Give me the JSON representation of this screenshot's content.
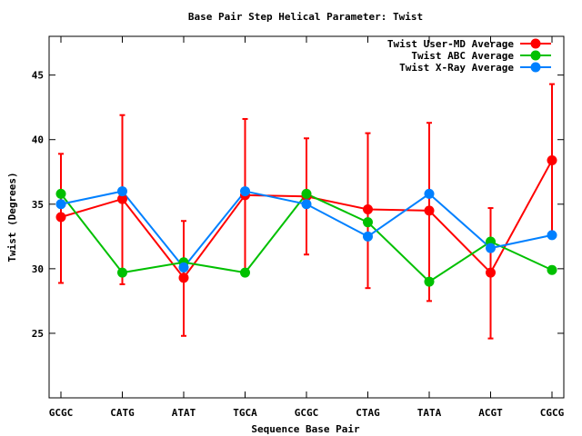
{
  "chart_data": {
    "type": "line",
    "title": "Base Pair Step Helical Parameter: Twist",
    "xlabel": "Sequence Base Pair",
    "ylabel": "Twist (Degrees)",
    "categories": [
      "GCGC",
      "CATG",
      "ATAT",
      "TGCA",
      "GCGC",
      "CTAG",
      "TATA",
      "ACGT",
      "CGCG"
    ],
    "ylim": [
      20,
      48
    ],
    "yticks": [
      25,
      30,
      35,
      40,
      45
    ],
    "grid": false,
    "legend_position": "top-right",
    "series": [
      {
        "name": "Twist User-MD Average",
        "color": "#ff0000",
        "values": [
          34.0,
          35.4,
          29.3,
          35.7,
          35.6,
          34.6,
          34.5,
          29.7,
          38.4
        ],
        "error_low": [
          28.9,
          28.8,
          24.8,
          29.5,
          31.1,
          28.5,
          27.5,
          24.6,
          32.6
        ],
        "error_high": [
          38.9,
          41.9,
          33.7,
          41.6,
          40.1,
          40.5,
          41.3,
          34.7,
          44.3
        ]
      },
      {
        "name": "Twist ABC Average",
        "color": "#00c000",
        "values": [
          35.8,
          29.7,
          30.5,
          29.7,
          35.8,
          33.6,
          29.0,
          32.1,
          29.9
        ]
      },
      {
        "name": "Twist X-Ray Average",
        "color": "#0080ff",
        "values": [
          35.0,
          36.0,
          30.1,
          36.0,
          35.0,
          32.5,
          35.8,
          31.6,
          32.6
        ]
      }
    ]
  }
}
